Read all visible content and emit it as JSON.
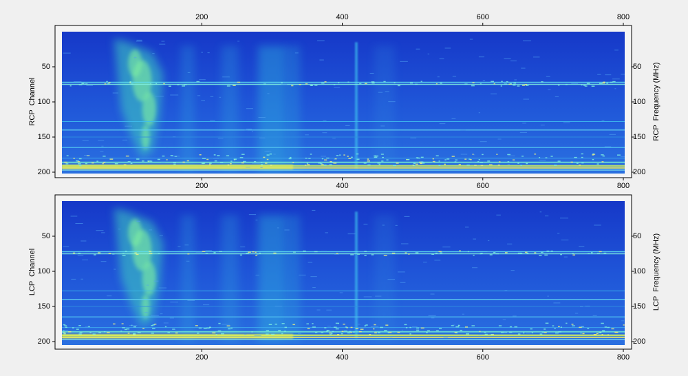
{
  "chart_data": [
    {
      "type": "spectrogram",
      "x_tick_sides": [
        "top",
        "bottom"
      ],
      "xlim": [
        0,
        800
      ],
      "xticks": [
        200,
        400,
        600,
        800
      ],
      "ylim": [
        0,
        200
      ],
      "yticks": [
        50,
        100,
        150,
        200
      ],
      "y_inverted": true,
      "ylabel": "RCP  Channel",
      "y2label": "RCP  Frequency (MHz)",
      "y2lim": [
        0,
        200
      ],
      "y2ticks": [
        50,
        100,
        150,
        200
      ]
    },
    {
      "type": "spectrogram",
      "x_tick_sides": [
        "bottom"
      ],
      "xlim": [
        0,
        800
      ],
      "xticks": [
        200,
        400,
        600,
        800
      ],
      "ylim": [
        0,
        200
      ],
      "yticks": [
        50,
        100,
        150,
        200
      ],
      "y_inverted": true,
      "ylabel": "LCP  Channel",
      "y2label": "LCP  Frequency (MHz)",
      "y2lim": [
        0,
        200
      ],
      "y2ticks": [
        50,
        100,
        150,
        200
      ]
    }
  ]
}
